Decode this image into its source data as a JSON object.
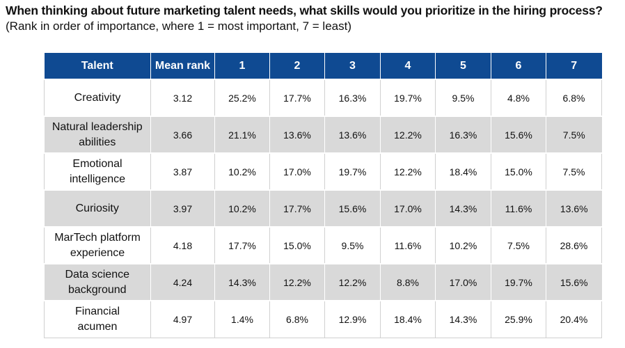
{
  "title": "When thinking about future marketing talent needs, what skills would you prioritize in the hiring process?",
  "subtitle": "(Rank in order of importance, where 1 = most important, 7 = least)",
  "colors": {
    "header_bg": "#0f4a92",
    "header_text": "#ffffff",
    "stripe_bg": "#d9d9d9"
  },
  "table": {
    "headers": [
      "Talent",
      "Mean rank",
      "1",
      "2",
      "3",
      "4",
      "5",
      "6",
      "7"
    ],
    "rows": [
      {
        "talent": [
          "Creativity"
        ],
        "mean": "3.12",
        "ranks": [
          "25.2%",
          "17.7%",
          "16.3%",
          "19.7%",
          "9.5%",
          "4.8%",
          "6.8%"
        ]
      },
      {
        "talent": [
          "Natural leadership",
          "abilities"
        ],
        "mean": "3.66",
        "ranks": [
          "21.1%",
          "13.6%",
          "13.6%",
          "12.2%",
          "16.3%",
          "15.6%",
          "7.5%"
        ]
      },
      {
        "talent": [
          "Emotional",
          "intelligence"
        ],
        "mean": "3.87",
        "ranks": [
          "10.2%",
          "17.0%",
          "19.7%",
          "12.2%",
          "18.4%",
          "15.0%",
          "7.5%"
        ]
      },
      {
        "talent": [
          "Curiosity"
        ],
        "mean": "3.97",
        "ranks": [
          "10.2%",
          "17.7%",
          "15.6%",
          "17.0%",
          "14.3%",
          "11.6%",
          "13.6%"
        ]
      },
      {
        "talent": [
          "MarTech platform",
          "experience"
        ],
        "mean": "4.18",
        "ranks": [
          "17.7%",
          "15.0%",
          "9.5%",
          "11.6%",
          "10.2%",
          "7.5%",
          "28.6%"
        ]
      },
      {
        "talent": [
          "Data science",
          "background"
        ],
        "mean": "4.24",
        "ranks": [
          "14.3%",
          "12.2%",
          "12.2%",
          "8.8%",
          "17.0%",
          "19.7%",
          "15.6%"
        ]
      },
      {
        "talent": [
          "Financial",
          "acumen"
        ],
        "mean": "4.97",
        "ranks": [
          "1.4%",
          "6.8%",
          "12.9%",
          "18.4%",
          "14.3%",
          "25.9%",
          "20.4%"
        ]
      }
    ]
  }
}
